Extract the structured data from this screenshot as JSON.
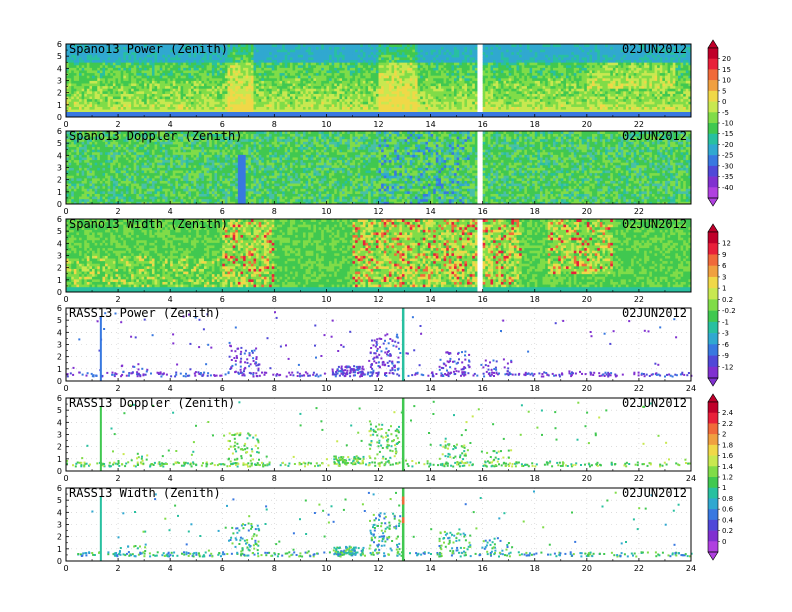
{
  "chart_data": [
    {
      "type": "heatmap",
      "title": "Spano13 Power (Zenith)",
      "date": "02JUN2012",
      "xlim": [
        0,
        24
      ],
      "ylim": [
        0,
        6
      ],
      "xticks": [
        "0",
        "2",
        "4",
        "6",
        "8",
        "10",
        "12",
        "14",
        "16",
        "18",
        "20",
        "22"
      ],
      "yticks": [
        "0",
        "1",
        "2",
        "3",
        "4",
        "5",
        "6"
      ],
      "style": "power",
      "colorbar": 0
    },
    {
      "type": "heatmap",
      "title": "Spano13 Doppler (Zenith)",
      "date": "02JUN2012",
      "xlim": [
        0,
        24
      ],
      "ylim": [
        0,
        6
      ],
      "xticks": [
        "0",
        "2",
        "4",
        "6",
        "8",
        "10",
        "12",
        "14",
        "16",
        "18",
        "20",
        "22"
      ],
      "yticks": [
        "0",
        "1",
        "2",
        "3",
        "4",
        "5",
        "6"
      ],
      "style": "doppler",
      "colorbar": 0
    },
    {
      "type": "heatmap",
      "title": "Spano13 Width (Zenith)",
      "date": "02JUN2012",
      "xlim": [
        0,
        24
      ],
      "ylim": [
        0,
        6
      ],
      "xticks": [
        "0",
        "2",
        "4",
        "6",
        "8",
        "10",
        "12",
        "14",
        "16",
        "18",
        "20",
        "22"
      ],
      "yticks": [
        "0",
        "1",
        "2",
        "3",
        "4",
        "5",
        "6"
      ],
      "style": "width",
      "colorbar": 1
    },
    {
      "type": "scatter",
      "title": "RASS13 Power (Zenith)",
      "date": "02JUN2012",
      "xlim": [
        0,
        24
      ],
      "ylim": [
        0,
        6
      ],
      "xticks": [
        "0",
        "2",
        "4",
        "6",
        "8",
        "10",
        "12",
        "14",
        "16",
        "18",
        "20",
        "22",
        "24"
      ],
      "yticks": [
        "0",
        "1",
        "2",
        "3",
        "4",
        "5",
        "6"
      ],
      "style": "rasspower",
      "colorbar": 1
    },
    {
      "type": "scatter",
      "title": "RASS13 Doppler (Zenith)",
      "date": "02JUN2012",
      "xlim": [
        0,
        24
      ],
      "ylim": [
        0,
        6
      ],
      "xticks": [
        "0",
        "2",
        "4",
        "6",
        "8",
        "10",
        "12",
        "14",
        "16",
        "18",
        "20",
        "22",
        "24"
      ],
      "yticks": [
        "0",
        "1",
        "2",
        "3",
        "4",
        "5",
        "6"
      ],
      "style": "rassdoppler",
      "colorbar": 2
    },
    {
      "type": "scatter",
      "title": "RASS13 Width (Zenith)",
      "date": "02JUN2012",
      "xlim": [
        0,
        24
      ],
      "ylim": [
        0,
        6
      ],
      "xticks": [
        "0",
        "2",
        "4",
        "6",
        "8",
        "10",
        "12",
        "14",
        "16",
        "18",
        "20",
        "22",
        "24"
      ],
      "yticks": [
        "0",
        "1",
        "2",
        "3",
        "4",
        "5",
        "6"
      ],
      "style": "rasswidth",
      "colorbar": 2
    }
  ],
  "colorbars": [
    {
      "labels": [
        "20",
        "15",
        "10",
        "5",
        "0",
        "-5",
        "-10",
        "-15",
        "-20",
        "-25",
        "-30",
        "-35",
        "-40"
      ],
      "colors": [
        "#c0002a",
        "#e8203a",
        "#f06a3a",
        "#f0a040",
        "#f0d848",
        "#c8e850",
        "#80dc48",
        "#40c850",
        "#28c0a0",
        "#30a8d0",
        "#3878e0",
        "#5048d8",
        "#8030d0",
        "#b040e0"
      ]
    },
    {
      "labels": [
        "12",
        "9",
        "6",
        "3",
        "1",
        "0.2",
        "-0.2",
        "-1",
        "-3",
        "-6",
        "-9",
        "-12"
      ],
      "colors": [
        "#c0002a",
        "#e8203a",
        "#f06a3a",
        "#f0a040",
        "#f0d848",
        "#c8e850",
        "#80dc48",
        "#40c850",
        "#28c0a0",
        "#30a8d0",
        "#3878e0",
        "#5048d8",
        "#8030d0"
      ]
    },
    {
      "labels": [
        "2.4",
        "2.2",
        "2",
        "1.8",
        "1.6",
        "1.4",
        "1.2",
        "1",
        "0.8",
        "0.6",
        "0.4",
        "0.2",
        "0"
      ],
      "colors": [
        "#c0002a",
        "#e8203a",
        "#f06a3a",
        "#f0a040",
        "#f0d848",
        "#c8e850",
        "#80dc48",
        "#40c850",
        "#28c0a0",
        "#30a8d0",
        "#3878e0",
        "#5048d8",
        "#8030d0",
        "#b040e0"
      ]
    }
  ]
}
